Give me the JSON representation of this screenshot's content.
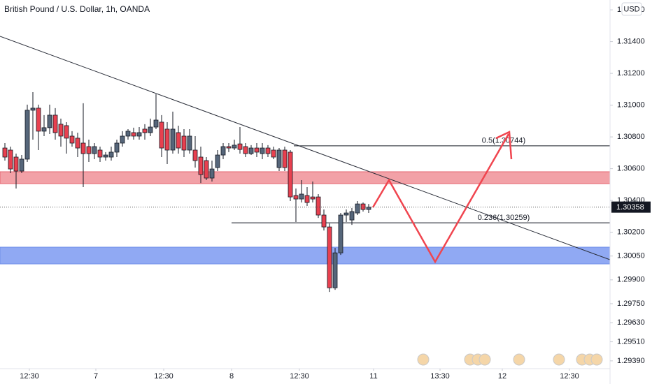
{
  "chart_data": {
    "type": "candlestick",
    "title": "British Pound / U.S. Dollar, 1h, OANDA",
    "currency": "USD",
    "up_color": "#56667a",
    "down_color": "#e8404f",
    "grid": false,
    "ylim": [
      1.29341,
      1.31662
    ],
    "xlim": [
      -0.875,
      108.125
    ],
    "yticks": [
      {
        "value": 1.316,
        "label": "1.31600"
      },
      {
        "value": 1.314,
        "label": "1.31400"
      },
      {
        "value": 1.312,
        "label": "1.31200"
      },
      {
        "value": 1.31,
        "label": "1.31000"
      },
      {
        "value": 1.308,
        "label": "1.30800"
      },
      {
        "value": 1.306,
        "label": "1.30600"
      },
      {
        "value": 1.304,
        "label": "1.30400"
      },
      {
        "value": 1.302,
        "label": "1.30200"
      },
      {
        "value": 1.3005,
        "label": "1.30050"
      },
      {
        "value": 1.299,
        "label": "1.29900"
      },
      {
        "value": 1.2975,
        "label": "1.29750"
      },
      {
        "value": 1.2963,
        "label": "1.29630"
      },
      {
        "value": 1.2951,
        "label": "1.29510"
      },
      {
        "value": 1.2939,
        "label": "1.29390"
      }
    ],
    "xticks": [
      {
        "value": 4.375,
        "label": "12:30"
      },
      {
        "value": 16.25,
        "label": "7"
      },
      {
        "value": 28.375,
        "label": "12:30"
      },
      {
        "value": 40.5,
        "label": "8"
      },
      {
        "value": 52.625,
        "label": "12:30"
      },
      {
        "value": 65.875,
        "label": "11"
      },
      {
        "value": 77.75,
        "label": "13:30"
      },
      {
        "value": 88.875,
        "label": "12"
      },
      {
        "value": 100.875,
        "label": "12:30"
      }
    ],
    "last_price": 1.30358,
    "levels": [
      {
        "label": "0.5(1.30744)",
        "value": 1.30744
      },
      {
        "label": "0.236(1.30259)",
        "value": 1.30259
      }
    ],
    "open": [
      1.3073,
      1.30717,
      1.30673,
      1.30585,
      1.3066,
      1.30968,
      1.30981,
      1.30836,
      1.30858,
      1.30937,
      1.3088,
      1.30871,
      1.30805,
      1.30792,
      1.30761,
      1.30739,
      1.30695,
      1.30717,
      1.30673,
      1.30673,
      1.30704,
      1.30761,
      1.30805,
      1.30827,
      1.30805,
      1.30849,
      1.30827,
      1.30862,
      1.30893,
      1.30849,
      1.30717,
      1.30827,
      1.30805,
      1.30717,
      1.30717,
      1.30673,
      1.30651,
      1.30541,
      1.30607,
      1.30686,
      1.30739,
      1.3073,
      1.30756,
      1.30739,
      1.30695,
      1.3073,
      1.30695,
      1.3073,
      1.30717,
      1.30607,
      1.30717,
      1.30704,
      1.30431,
      1.30409,
      1.30431,
      1.30422,
      1.30422,
      1.30308,
      1.30233,
      1.2985,
      1.3007,
      1.30308,
      1.30277,
      1.30321,
      1.30378,
      1.30343
    ],
    "high": [
      1.30761,
      1.30739,
      1.30695,
      1.30686,
      1.31003,
      1.31082,
      1.31003,
      1.30937,
      1.31003,
      1.30981,
      1.30915,
      1.30893,
      1.30836,
      1.30827,
      1.31012,
      1.30783,
      1.30761,
      1.30739,
      1.30704,
      1.30739,
      1.30783,
      1.30836,
      1.30849,
      1.30858,
      1.30862,
      1.3088,
      1.30915,
      1.31069,
      1.30937,
      1.30893,
      1.30959,
      1.30871,
      1.30849,
      1.30849,
      1.30805,
      1.30739,
      1.30673,
      1.30651,
      1.30717,
      1.30761,
      1.30761,
      1.30783,
      1.30862,
      1.30761,
      1.30748,
      1.30761,
      1.30761,
      1.30748,
      1.30739,
      1.3073,
      1.30739,
      1.30717,
      1.30475,
      1.30528,
      1.30484,
      1.30519,
      1.3044,
      1.30343,
      1.30255,
      1.30101,
      1.30321,
      1.30343,
      1.30352,
      1.30396,
      1.30387,
      1.30378
    ],
    "low": [
      1.30651,
      1.30572,
      1.30475,
      1.30572,
      1.30642,
      1.30783,
      1.30717,
      1.30805,
      1.30818,
      1.30783,
      1.30739,
      1.30695,
      1.30739,
      1.30673,
      1.30484,
      1.30642,
      1.3066,
      1.30642,
      1.30651,
      1.30651,
      1.30673,
      1.30739,
      1.30783,
      1.30783,
      1.30783,
      1.30783,
      1.30805,
      1.30849,
      1.30673,
      1.30629,
      1.30695,
      1.30695,
      1.30673,
      1.30695,
      1.30607,
      1.3051,
      1.30528,
      1.30519,
      1.30585,
      1.3066,
      1.30704,
      1.30717,
      1.30695,
      1.30673,
      1.30686,
      1.30673,
      1.3066,
      1.30673,
      1.3066,
      1.30585,
      1.30585,
      1.30396,
      1.30264,
      1.30387,
      1.30365,
      1.30387,
      1.3029,
      1.30211,
      1.29824,
      1.29837,
      1.30057,
      1.30264,
      1.30246,
      1.30308,
      1.3033,
      1.30321
    ],
    "close": [
      1.30673,
      1.30598,
      1.30585,
      1.3066,
      1.30968,
      1.30981,
      1.30836,
      1.30858,
      1.30937,
      1.30827,
      1.30805,
      1.30792,
      1.30761,
      1.3073,
      1.30695,
      1.30695,
      1.30739,
      1.30673,
      1.30686,
      1.30704,
      1.30761,
      1.30805,
      1.30836,
      1.30805,
      1.30827,
      1.30827,
      1.30862,
      1.30906,
      1.3073,
      1.30717,
      1.30849,
      1.3073,
      1.30717,
      1.30805,
      1.30651,
      1.30563,
      1.30541,
      1.30598,
      1.30686,
      1.30739,
      1.3073,
      1.30748,
      1.30721,
      1.30695,
      1.3073,
      1.30704,
      1.3073,
      1.30695,
      1.30673,
      1.30717,
      1.30607,
      1.30422,
      1.30409,
      1.3044,
      1.30387,
      1.30409,
      1.30308,
      1.30233,
      1.2985,
      1.3007,
      1.30308,
      1.30321,
      1.3033,
      1.30378,
      1.30343,
      1.30358
    ]
  }
}
